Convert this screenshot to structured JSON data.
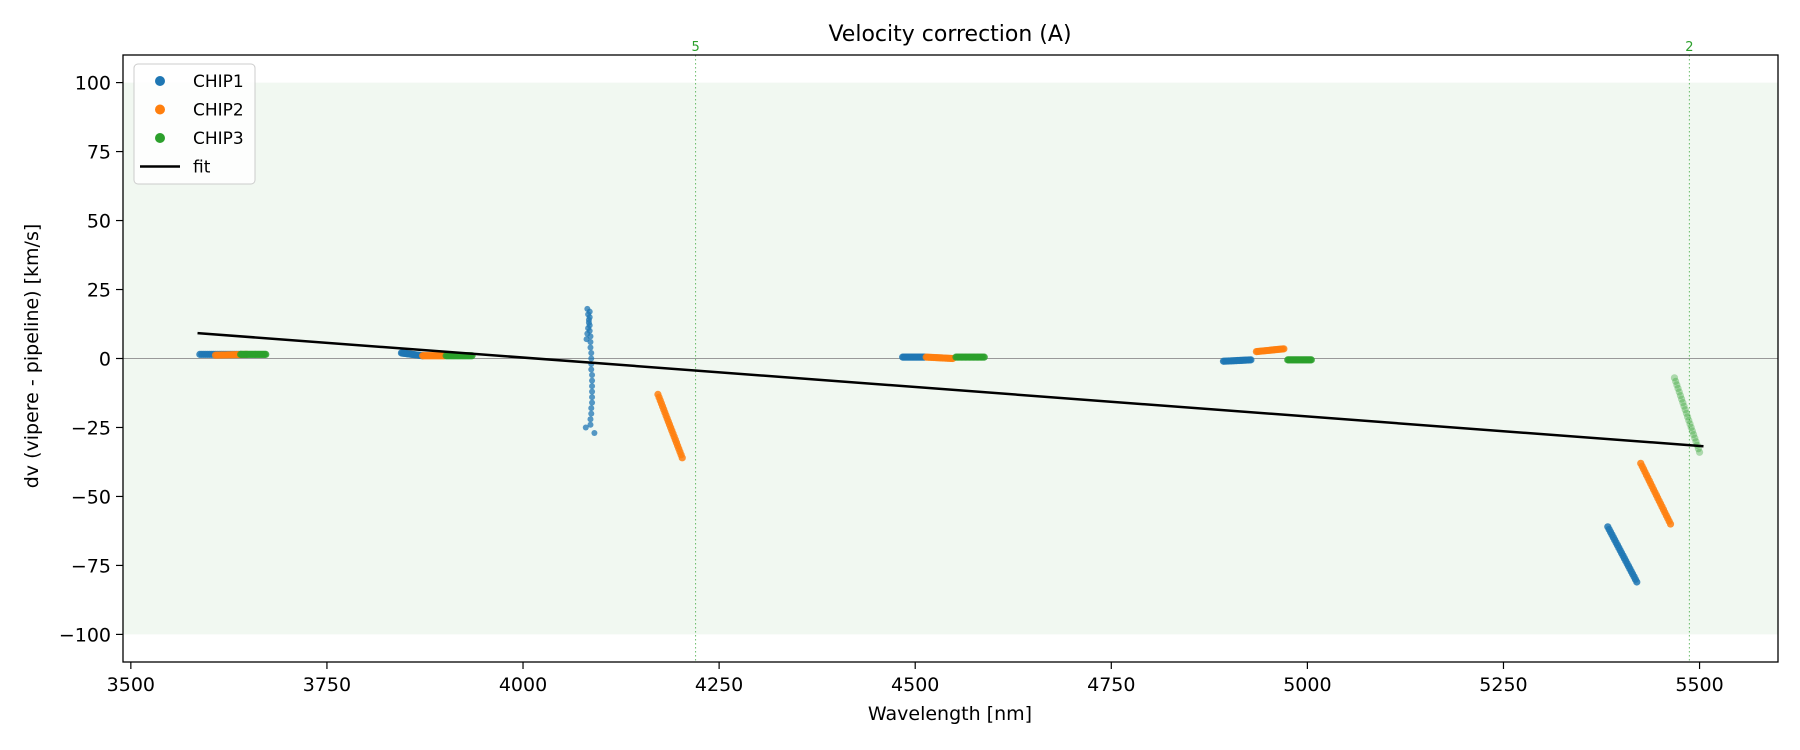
{
  "chart_data": {
    "type": "scatter",
    "title": "Velocity correction (A)",
    "xlabel": "Wavelength [nm]",
    "ylabel": "dv (vipere - pipeline) [km/s]",
    "xlim": [
      3490,
      5600
    ],
    "ylim": [
      -110,
      110
    ],
    "xticks": [
      3500,
      3750,
      4000,
      4250,
      4500,
      4750,
      5000,
      5250,
      5500
    ],
    "yticks": [
      -100,
      -75,
      -50,
      -25,
      0,
      25,
      50,
      75,
      100
    ],
    "grid": false,
    "legend_position": "upper left",
    "shaded_band": {
      "y_from": -100,
      "y_to": 100,
      "color": "#e8f4e8"
    },
    "zero_line": {
      "y": 0,
      "color": "#999999"
    },
    "vlines": [
      {
        "x": 4220,
        "label": "5",
        "color": "#2ca02c"
      },
      {
        "x": 5487,
        "label": "2",
        "color": "#2ca02c"
      }
    ],
    "series": [
      {
        "name": "CHIP1",
        "color": "#1f77b4",
        "segments": [
          {
            "x": [
              3588,
              3640
            ],
            "y": [
              1.5,
              1.5
            ]
          },
          {
            "x": [
              3845,
              3872
            ],
            "y": [
              2.0,
              1.0
            ]
          },
          {
            "x": [
              4082,
              4083,
              4084,
              4085,
              4085,
              4086,
              4086,
              4086,
              4087,
              4087,
              4087,
              4087,
              4088,
              4088,
              4088,
              4088,
              4088,
              4088,
              4087,
              4087,
              4086,
              4086,
              4085,
              4085,
              4084,
              4083,
              4082,
              4081,
              4080,
              4091
            ],
            "y": [
              18,
              16,
              14,
              12,
              10,
              8,
              6,
              4,
              2,
              0,
              -2,
              -4,
              -6,
              -8,
              -10,
              -12,
              -14,
              -16,
              -18,
              -20,
              -22,
              -24,
              17,
              15,
              13,
              11,
              9,
              7,
              -25,
              -27
            ],
            "sparse": true
          },
          {
            "x": [
              4484,
              4512
            ],
            "y": [
              0.5,
              0.5
            ]
          },
          {
            "x": [
              4893,
              4928
            ],
            "y": [
              -1.0,
              -0.5
            ]
          },
          {
            "x": [
              5383,
              5420
            ],
            "y": [
              -61,
              -81
            ]
          }
        ]
      },
      {
        "name": "CHIP2",
        "color": "#ff7f0e",
        "segments": [
          {
            "x": [
              3608,
              3648
            ],
            "y": [
              1.2,
              1.5
            ]
          },
          {
            "x": [
              3872,
              3900
            ],
            "y": [
              1.0,
              1.0
            ]
          },
          {
            "x": [
              4172,
              4203
            ],
            "y": [
              -13,
              -36
            ]
          },
          {
            "x": [
              4514,
              4548
            ],
            "y": [
              0.5,
              0.0
            ]
          },
          {
            "x": [
              4935,
              4970
            ],
            "y": [
              2.5,
              3.5
            ]
          },
          {
            "x": [
              5425,
              5463
            ],
            "y": [
              -38,
              -60
            ]
          }
        ]
      },
      {
        "name": "CHIP3",
        "color": "#2ca02c",
        "segments": [
          {
            "x": [
              3640,
              3672
            ],
            "y": [
              1.5,
              1.5
            ]
          },
          {
            "x": [
              3902,
              3935
            ],
            "y": [
              1.0,
              1.0
            ]
          },
          {
            "x": [
              4552,
              4588
            ],
            "y": [
              0.5,
              0.5
            ]
          },
          {
            "x": [
              4975,
              5005
            ],
            "y": [
              -0.5,
              -0.5
            ]
          },
          {
            "x": [
              5468,
              5500
            ],
            "y": [
              -7,
              -34
            ],
            "faded": true
          }
        ]
      },
      {
        "name": "fit",
        "color": "#000000",
        "line": true,
        "x": [
          3585,
          5505
        ],
        "y": [
          9.2,
          -31.8
        ]
      }
    ]
  }
}
